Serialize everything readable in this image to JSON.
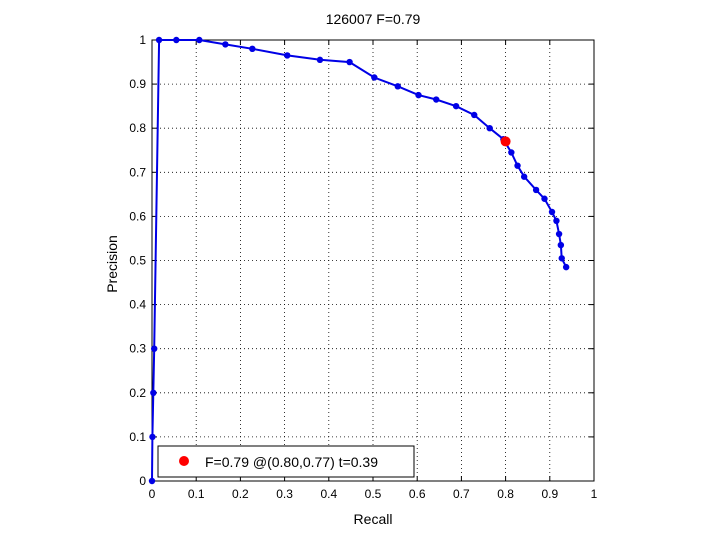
{
  "chart_data": {
    "type": "line",
    "title": "126007 F=0.79",
    "xlabel": "Recall",
    "ylabel": "Precision",
    "xlim": [
      0,
      1
    ],
    "ylim": [
      0,
      1
    ],
    "grid": true,
    "grid_style": "dotted",
    "xticks": [
      "0",
      "0.1",
      "0.2",
      "0.3",
      "0.4",
      "0.5",
      "0.6",
      "0.7",
      "0.8",
      "0.9",
      "1"
    ],
    "yticks": [
      "0",
      "0.1",
      "0.2",
      "0.3",
      "0.4",
      "0.5",
      "0.6",
      "0.7",
      "0.8",
      "0.9",
      "1"
    ],
    "series": [
      {
        "color": "#0000e6",
        "marker": "circle",
        "x": [
          0.0,
          0.001,
          0.003,
          0.005,
          0.016,
          0.055,
          0.107,
          0.166,
          0.227,
          0.306,
          0.38,
          0.447,
          0.503,
          0.556,
          0.603,
          0.643,
          0.688,
          0.729,
          0.764,
          0.795,
          0.813,
          0.827,
          0.842,
          0.869,
          0.888,
          0.905,
          0.915,
          0.921,
          0.925,
          0.927,
          0.937
        ],
        "y": [
          0.0,
          0.1,
          0.2,
          0.3,
          1.0,
          1.0,
          1.0,
          0.99,
          0.98,
          0.965,
          0.955,
          0.95,
          0.915,
          0.895,
          0.875,
          0.865,
          0.85,
          0.83,
          0.8,
          0.775,
          0.745,
          0.715,
          0.69,
          0.66,
          0.64,
          0.61,
          0.59,
          0.56,
          0.535,
          0.505,
          0.485
        ]
      }
    ],
    "highlight_point": {
      "x": 0.8,
      "y": 0.77,
      "color": "#ff0000"
    },
    "legend": {
      "entries": [
        "F=0.79 @(0.80,0.77) t=0.39"
      ],
      "location": "bottom-left"
    }
  }
}
